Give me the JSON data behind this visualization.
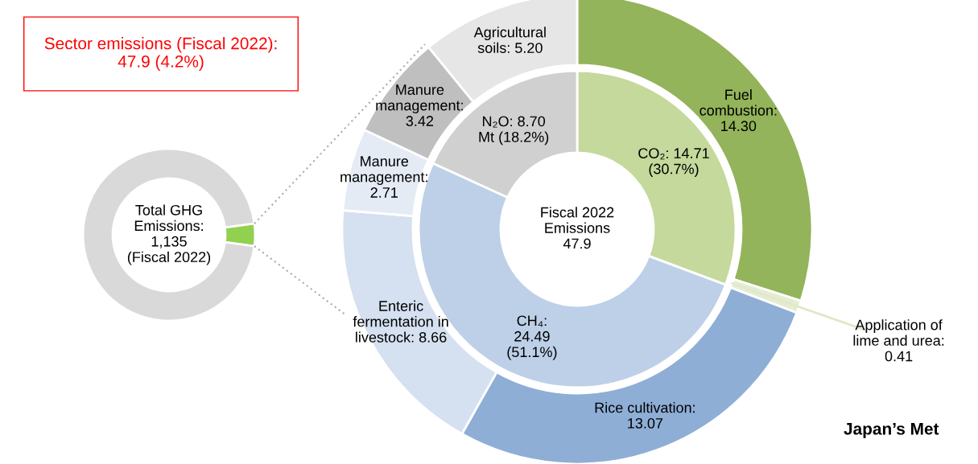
{
  "chart_data": [
    {
      "type": "donut",
      "categories": [
        null,
        null
      ],
      "values": [
        4.2,
        95.8
      ],
      "colors": [
        "#92d050",
        "#d9d9d9"
      ],
      "annotations": [
        "Total GHG\nEmissions:\n1,135\n(Fiscal 2022)",
        "Sector emissions (Fiscal 2022):\n47.9 (4.2%)"
      ]
    },
    {
      "type": "donut",
      "annotations": [
        "Fiscal 2022\nEmissions\n47.9",
        "Japan’s Met"
      ],
      "series": [
        {
          "value_labels": [
            "CO₂: 14.71\n(30.7%)",
            "CH₄:\n24.49\n(51.1%)",
            "N₂O: 8.70\nMt (18.2%)"
          ],
          "values": [
            14.71,
            24.49,
            8.7
          ],
          "colors": [
            "#c4d99b",
            "#bdd0e8",
            "#d0d0d0"
          ]
        },
        {
          "value_labels": [
            "Fuel\ncombustion:\n14.30",
            "Application of\nlime and urea:\n0.41",
            "Rice cultivation:\n13.07",
            "Enteric\nfermentation in\nlivestock: 8.66",
            "Manure\nmanagement:\n2.71",
            "Manure\nmanagement:\n3.42",
            "Agricultural\nsoils: 5.20"
          ],
          "values": [
            14.3,
            0.41,
            13.07,
            8.66,
            2.71,
            3.42,
            5.2
          ],
          "colors": [
            "#93b45a",
            "#e4edd2",
            "#8eaed6",
            "#d5e0f0",
            "#e4ebf5",
            "#bfbfbf",
            "#e6e6e6"
          ]
        }
      ]
    }
  ]
}
